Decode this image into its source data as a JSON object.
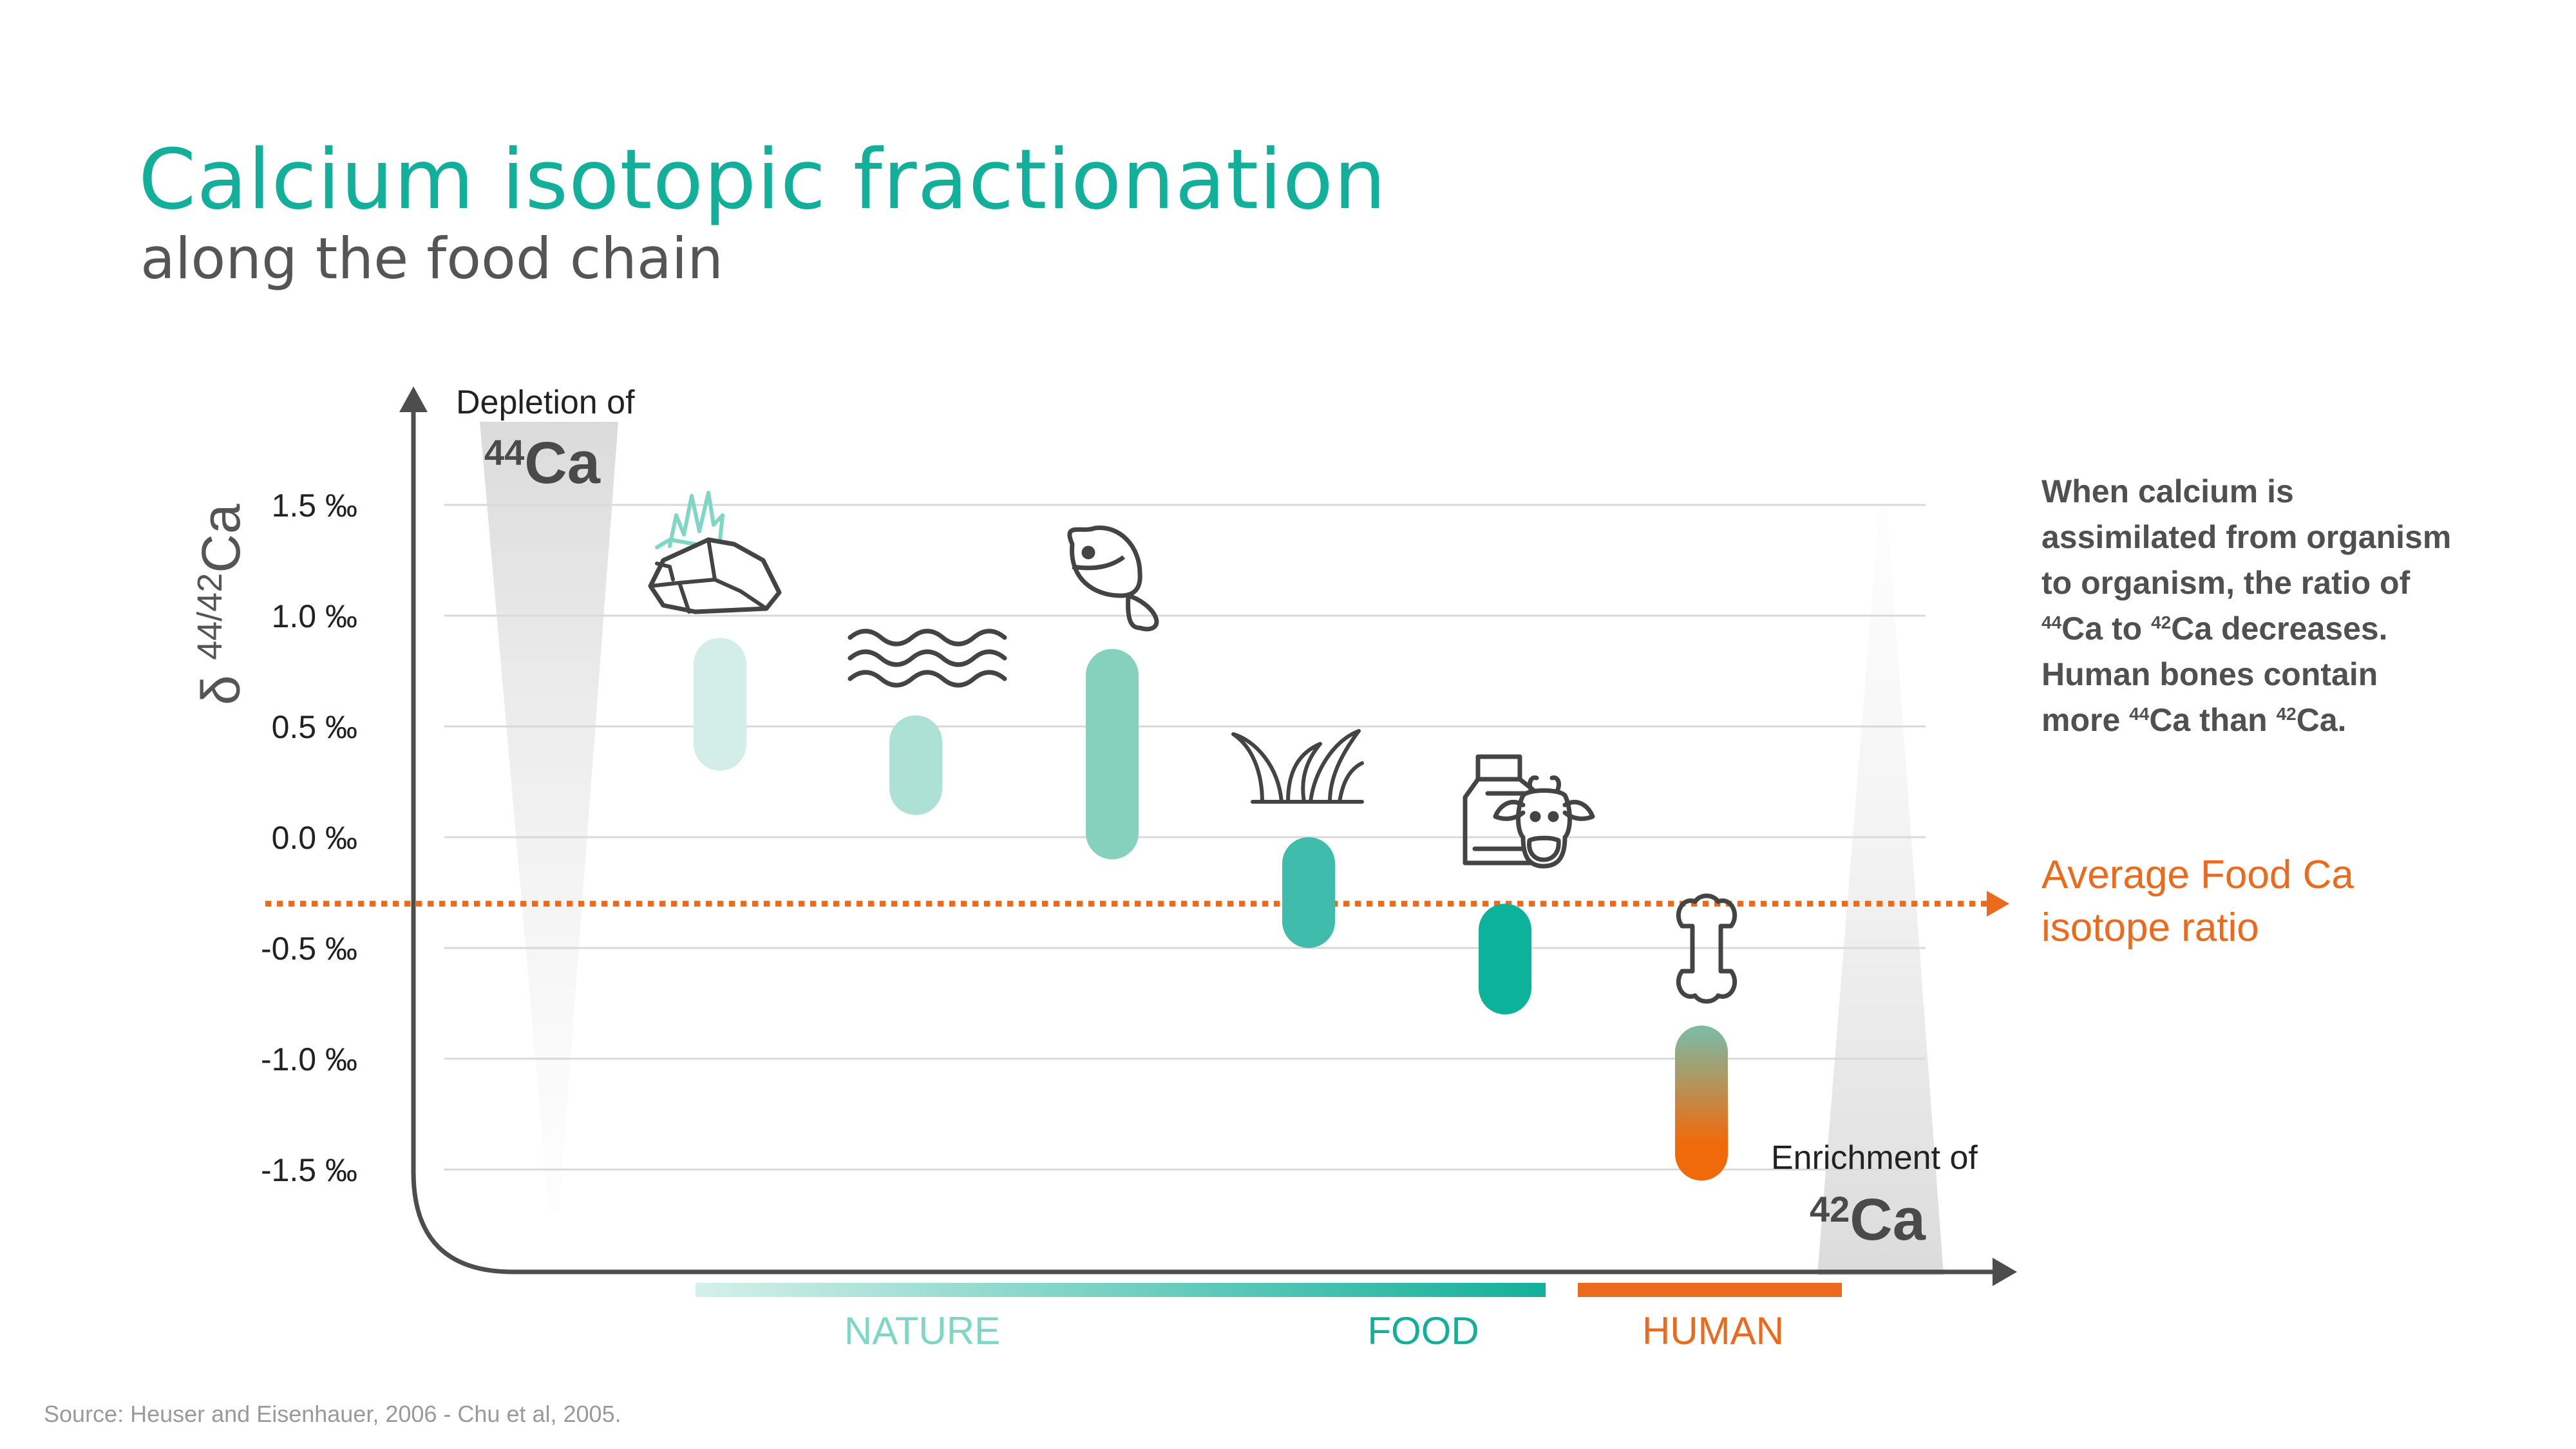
{
  "title": "Calcium isotopic fractionation",
  "subtitle": "along the food chain",
  "description": {
    "line1": "When calcium is",
    "line2": "assimilated from organism",
    "line3": "to organism, the ratio of",
    "line4_sup1": "44",
    "line4_mid": "Ca to ",
    "line4_sup2": "42",
    "line4_end": "Ca decreases.",
    "line5": "Human bones contain",
    "line6_pre": "more ",
    "line6_sup1": "44",
    "line6_mid": "Ca than ",
    "line6_sup2": "42",
    "line6_end": "Ca."
  },
  "average_label": {
    "line1": "Average Food Ca",
    "line2": "isotope ratio"
  },
  "source": "Source: Heuser and Eisenhauer, 2006 - Chu et al, 2005.",
  "colors": {
    "teal": "#12b09a",
    "orange": "#ec6a1c",
    "axis": "#4d4d4d",
    "grid": "#d9d9d9"
  },
  "chart_data": {
    "type": "range-bar",
    "ylabel_prefix": "δ ",
    "ylabel_sup": "44/42",
    "ylabel_main": "Ca",
    "ylim": [
      -1.9,
      1.9
    ],
    "yticks": [
      1.5,
      1.0,
      0.5,
      0.0,
      -0.5,
      -1.0,
      -1.5
    ],
    "ytick_labels": [
      "1.5 ‰",
      "1.0 ‰",
      "0.5 ‰",
      "0.0 ‰",
      "-0.5 ‰",
      "-1.0 ‰",
      "-1.5 ‰"
    ],
    "grid": true,
    "depletion_label": "Depletion of",
    "depletion_sup": "44",
    "depletion_main": "Ca",
    "enrichment_label": "Enrichment of",
    "enrichment_sup": "42",
    "enrichment_main": "Ca",
    "average_value": -0.3,
    "categories": [
      {
        "icon": "rock-grass-icon",
        "low": 0.3,
        "high": 0.9,
        "color": "#d3eee8"
      },
      {
        "icon": "water-waves-icon",
        "low": 0.1,
        "high": 0.55,
        "color": "#ade1d5"
      },
      {
        "icon": "fish-icon",
        "low": -0.1,
        "high": 0.85,
        "color": "#85d1bd"
      },
      {
        "icon": "plant-icon",
        "low": -0.5,
        "high": 0.0,
        "color": "#3fbcab"
      },
      {
        "icon": "milk-cow-icon",
        "low": -0.8,
        "high": -0.3,
        "color": "#0db29a"
      },
      {
        "icon": "bone-icon",
        "low": -1.55,
        "high": -0.85,
        "color_top": "#80b8a0",
        "color_bottom": "#f06a0c"
      }
    ],
    "groups": [
      {
        "label": "NATURE",
        "color": "#7fd6c4"
      },
      {
        "label": "FOOD",
        "color": "#12b09a"
      },
      {
        "label": "HUMAN",
        "color": "#ec6a1c"
      }
    ]
  }
}
